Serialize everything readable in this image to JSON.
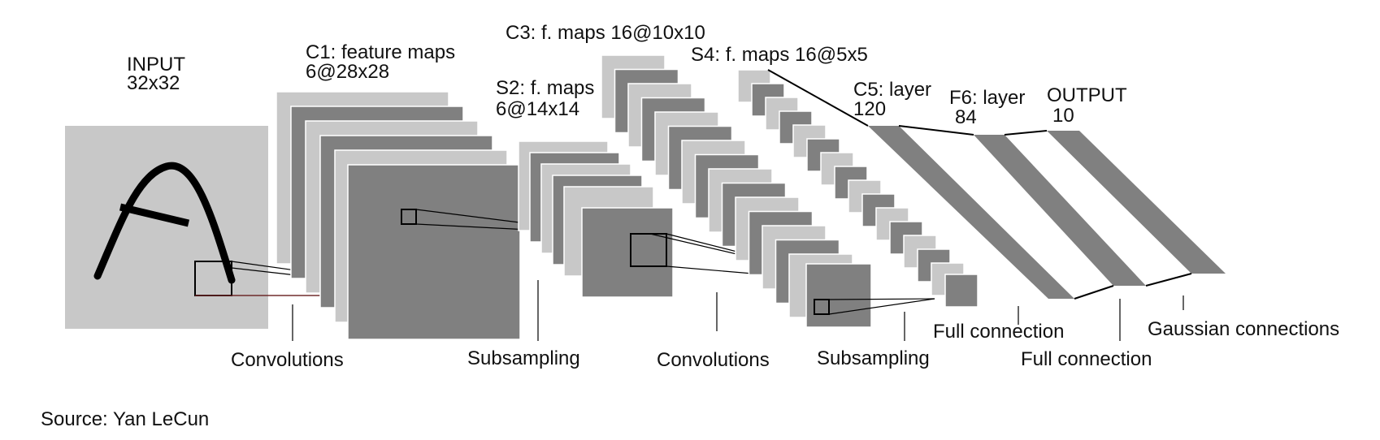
{
  "layers": {
    "input": {
      "name": "INPUT",
      "size": "32x32"
    },
    "c1": {
      "name": "C1: feature maps",
      "size": "6@28x28"
    },
    "s2": {
      "name": "S2: f. maps",
      "size": "6@14x14"
    },
    "c3": {
      "name": "C3: f. maps 16@10x10"
    },
    "s4": {
      "name": "S4: f. maps 16@5x5"
    },
    "c5": {
      "name": "C5: layer",
      "size": "120"
    },
    "f6": {
      "name": "F6: layer",
      "size": "84"
    },
    "output": {
      "name": "OUTPUT",
      "size": "10"
    }
  },
  "operations": {
    "conv1": "Convolutions",
    "sub1": "Subsampling",
    "conv2": "Convolutions",
    "sub2": "Subsampling",
    "full1": "Full connection",
    "full2": "Full connection",
    "gauss": "Gaussian connections"
  },
  "source": "Source: Yan LeCun",
  "colors": {
    "light_map": "#c8c8c8",
    "dark_map": "#808080",
    "line": "#000000"
  }
}
